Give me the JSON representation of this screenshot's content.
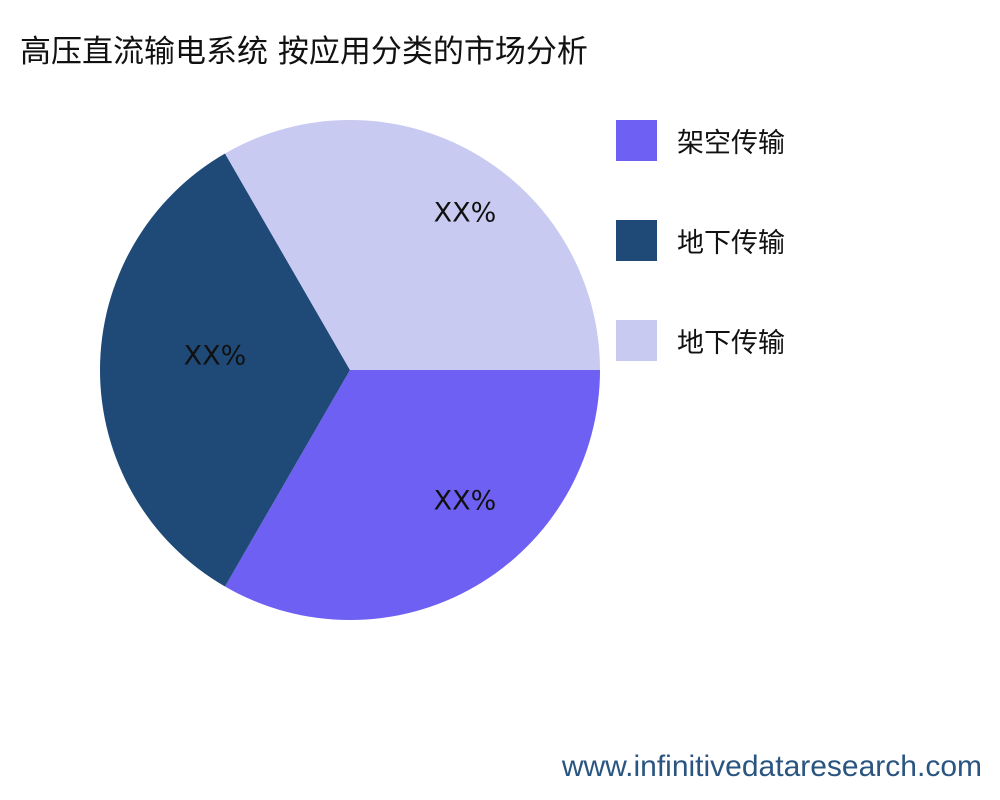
{
  "chart_data": {
    "type": "pie",
    "title": "高压直流输电系统 按应用分类的市场分析",
    "slices": [
      {
        "name": "架空传输",
        "value": 33.33,
        "label": "XX%",
        "color": "#6e60f2"
      },
      {
        "name": "地下传输",
        "value": 33.33,
        "label": "XX%",
        "color": "#1f4a78"
      },
      {
        "name": "地下传输",
        "value": 33.33,
        "label": "XX%",
        "color": "#c9caf1"
      }
    ],
    "start_angle": "3 o'clock, clockwise",
    "legend_position": "right"
  },
  "watermark": "www.infinitivedataresearch.com"
}
